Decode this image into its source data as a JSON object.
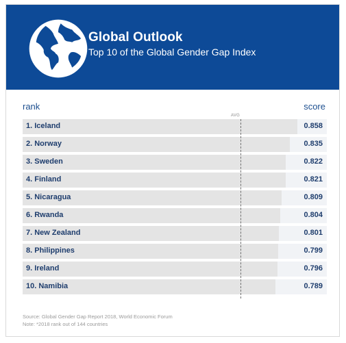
{
  "header": {
    "title": "Global Outlook",
    "subtitle": "Top 10 of the Global Gender Gap Index",
    "icon": "globe-icon",
    "background_color": "#0d4a97"
  },
  "columns": {
    "rank": "rank",
    "score": "score",
    "avg": "AVG"
  },
  "chart_data": {
    "type": "bar",
    "orientation": "horizontal",
    "categories": [
      "1. Iceland",
      "2. Norway",
      "3. Sweden",
      "4. Finland",
      "5. Nicaragua",
      "6. Rwanda",
      "7. New Zealand",
      "8. Philippines",
      "9. Ireland",
      "10. Namibia"
    ],
    "values": [
      0.858,
      0.835,
      0.822,
      0.821,
      0.809,
      0.804,
      0.801,
      0.799,
      0.796,
      0.789
    ],
    "labels": [
      "0.858",
      "0.835",
      "0.822",
      "0.821",
      "0.809",
      "0.804",
      "0.801",
      "0.799",
      "0.796",
      "0.789"
    ],
    "reference_line": {
      "label": "AVG",
      "value": 0.68
    },
    "title": "Global Outlook",
    "subtitle": "Top 10 of the Global Gender Gap Index",
    "xlim": [
      0,
      0.95
    ],
    "colors": {
      "bar": "#e4e4e4",
      "track": "#f1f3f6",
      "text": "#1e3d6d"
    }
  },
  "footer": {
    "source": "Source: Global Gender Gap Report 2018,  World Economic Forum",
    "note": "Note: *2018 rank out of 144 countries"
  }
}
